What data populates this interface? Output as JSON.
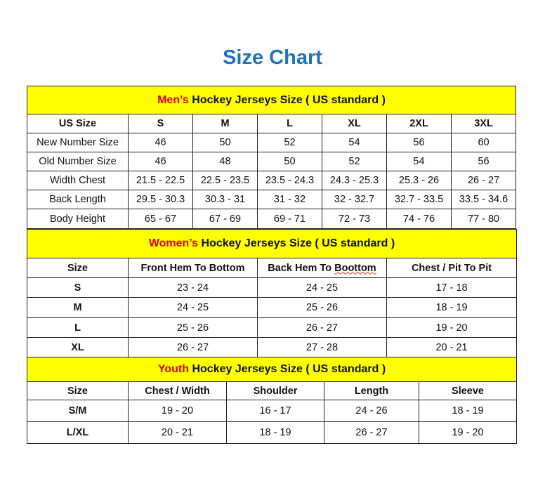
{
  "title": "Size Chart",
  "colors": {
    "title": "#1f72c0",
    "header_bg": "#ffff00",
    "highlight": "#e00000"
  },
  "mens": {
    "title_highlight": "Men’s",
    "title_rest": " Hockey Jerseys Size ( US standard )",
    "columns": [
      "US Size",
      "S",
      "M",
      "L",
      "XL",
      "2XL",
      "3XL"
    ],
    "rows": [
      [
        "New Number Size",
        "46",
        "50",
        "52",
        "54",
        "56",
        "60"
      ],
      [
        "Old Number Size",
        "46",
        "48",
        "50",
        "52",
        "54",
        "56"
      ],
      [
        "Width Chest",
        "21.5 - 22.5",
        "22.5 - 23.5",
        "23.5 - 24.3",
        "24.3 - 25.3",
        "25.3 - 26",
        "26 - 27"
      ],
      [
        "Back Length",
        "29.5 - 30.3",
        "30.3 - 31",
        "31 - 32",
        "32 - 32.7",
        "32.7 - 33.5",
        "33.5 - 34.6"
      ],
      [
        "Body Height",
        "65 - 67",
        "67 - 69",
        "69 - 71",
        "72 - 73",
        "74 - 76",
        "77 - 80"
      ]
    ]
  },
  "womens": {
    "title_highlight": "Women’s",
    "title_rest": " Hockey Jerseys Size ( US standard )",
    "columns": [
      "Size",
      "Front Hem To Bottom",
      "Back Hem To Boottom",
      "Chest / Pit To Pit"
    ],
    "rows": [
      [
        "S",
        "23 - 24",
        "24 - 25",
        "17 - 18"
      ],
      [
        "M",
        "24 - 25",
        "25 - 26",
        "18 - 19"
      ],
      [
        "L",
        "25 - 26",
        "26 - 27",
        "19 - 20"
      ],
      [
        "XL",
        "26 - 27",
        "27 - 28",
        "20 - 21"
      ]
    ]
  },
  "youth": {
    "title_highlight": "Youth",
    "title_rest": " Hockey Jerseys Size ( US standard )",
    "columns": [
      "Size",
      "Chest / Width",
      "Shoulder",
      "Length",
      "Sleeve"
    ],
    "rows": [
      [
        "S/M",
        "19 - 20",
        "16 - 17",
        "24 - 26",
        "18 - 19"
      ],
      [
        "L/XL",
        "20 - 21",
        "18 - 19",
        "26 - 27",
        "19 - 20"
      ]
    ]
  }
}
